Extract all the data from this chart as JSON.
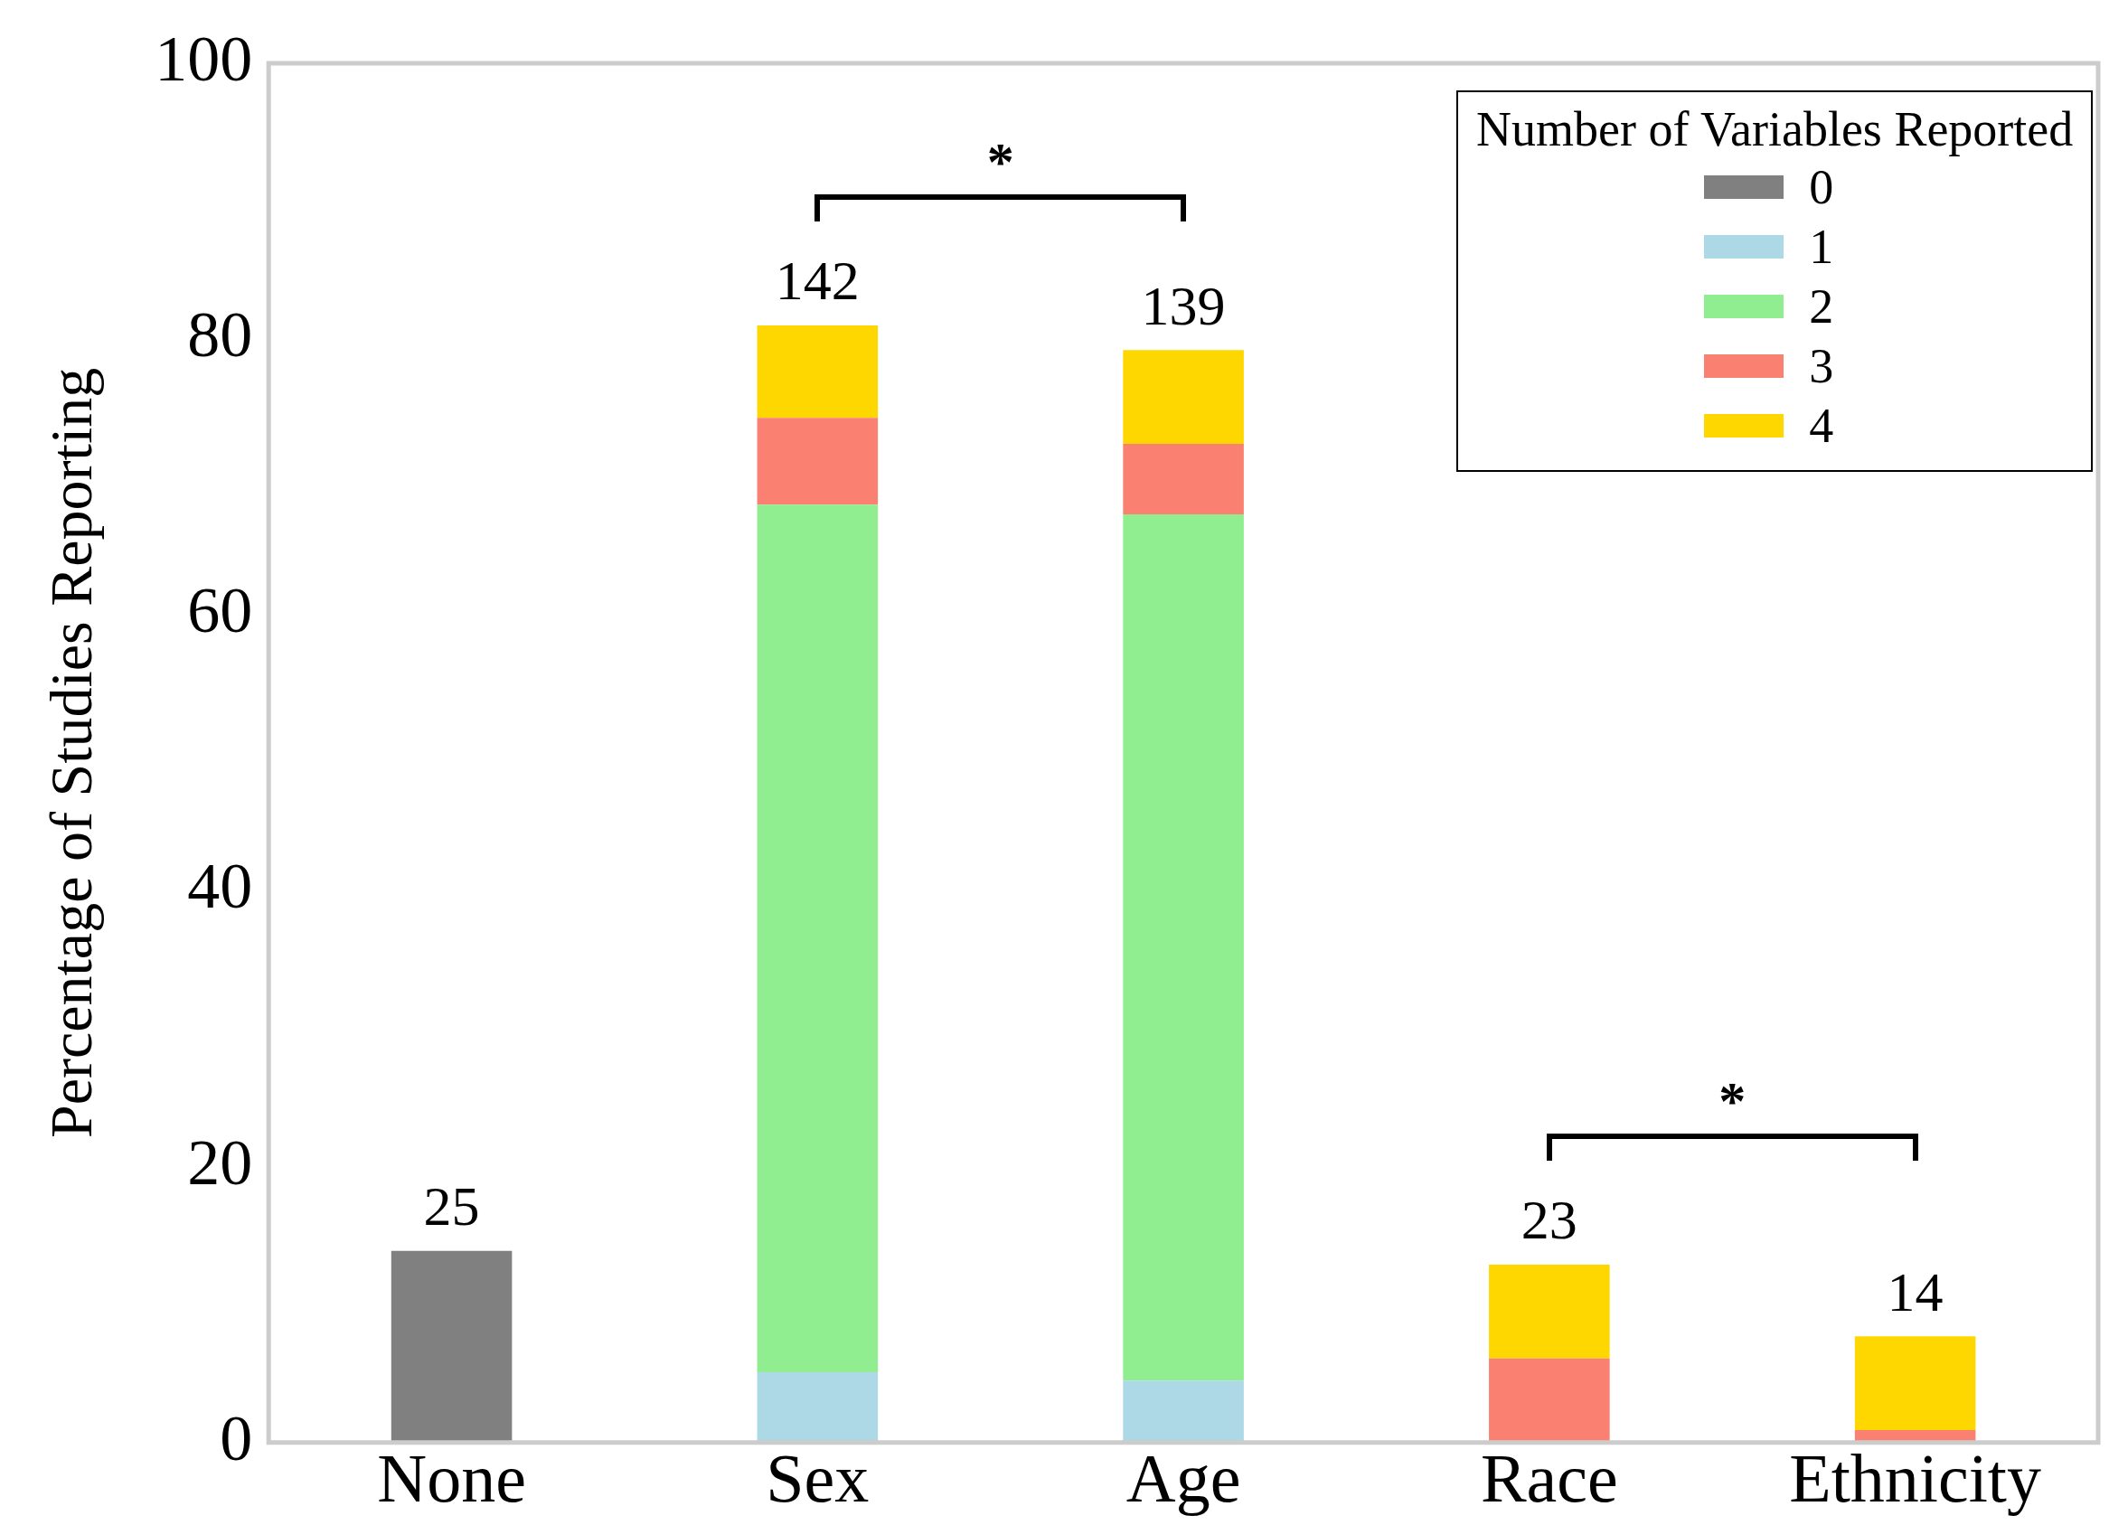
{
  "chart_data": {
    "type": "bar",
    "stacked": true,
    "ylabel": "Percentage of Studies Reporting",
    "legend_title": "Number of Variables Reported",
    "legend": "top right",
    "grid": false,
    "categories": [
      "None",
      "Sex",
      "Age",
      "Race",
      "Ethnicity"
    ],
    "series": [
      {
        "name": "0",
        "color": "#808080",
        "values": [
          13.9,
          null,
          null,
          null,
          null
        ]
      },
      {
        "name": "1",
        "color": "#add8e6",
        "values": [
          null,
          5.1,
          4.5,
          null,
          null
        ]
      },
      {
        "name": "2",
        "color": "#90ee90",
        "values": [
          null,
          62.9,
          62.8,
          null,
          null
        ]
      },
      {
        "name": "3",
        "color": "#fa8072",
        "values": [
          null,
          6.3,
          5.1,
          6.1,
          0.9
        ]
      },
      {
        "name": "4",
        "color": "#ffd700",
        "values": [
          null,
          6.7,
          6.8,
          6.8,
          6.8
        ]
      }
    ],
    "ylim": [
      0,
      100
    ],
    "yticks": [
      0,
      20,
      40,
      60,
      80,
      100
    ],
    "annotations": [
      {
        "text": "25",
        "x": "None",
        "y": 13.9
      },
      {
        "text": "142",
        "x": "Sex",
        "y": 81
      },
      {
        "text": "139",
        "x": "Age",
        "y": 79.2
      },
      {
        "text": "23",
        "x": "Race",
        "y": 12.9
      },
      {
        "text": "14",
        "x": "Ethnicity",
        "y": 7.7
      },
      "*",
      "*"
    ]
  }
}
